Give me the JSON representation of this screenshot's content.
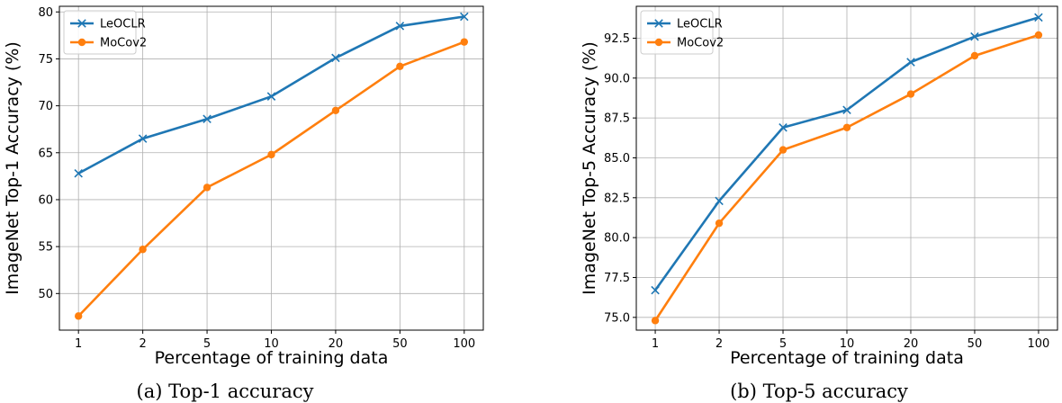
{
  "chart_data": [
    {
      "type": "line",
      "caption": "(a) Top-1 accuracy",
      "xlabel": "Percentage of training data",
      "ylabel": "ImageNet Top-1 Accuracy (%)",
      "categories": [
        "1",
        "2",
        "5",
        "10",
        "20",
        "50",
        "100"
      ],
      "ylim": [
        46.1,
        80.6
      ],
      "yticks": [
        50,
        55,
        60,
        65,
        70,
        75,
        80
      ],
      "ytick_labels": [
        "50",
        "55",
        "60",
        "65",
        "70",
        "75",
        "80"
      ],
      "grid": true,
      "legend_position": "top-left",
      "series": [
        {
          "name": "LeOCLR",
          "color": "#1f77b4",
          "marker": "x",
          "values": [
            62.8,
            66.5,
            68.6,
            71.0,
            75.1,
            78.5,
            79.5
          ]
        },
        {
          "name": "MoCov2",
          "color": "#ff7f0e",
          "marker": "o",
          "values": [
            47.6,
            54.7,
            61.3,
            64.8,
            69.5,
            74.2,
            76.8
          ]
        }
      ]
    },
    {
      "type": "line",
      "caption": "(b) Top-5 accuracy",
      "xlabel": "Percentage of training data",
      "ylabel": "ImageNet Top-5 Accuracy (%)",
      "categories": [
        "1",
        "2",
        "5",
        "10",
        "20",
        "50",
        "100"
      ],
      "ylim": [
        74.2,
        94.5
      ],
      "yticks": [
        75.0,
        77.5,
        80.0,
        82.5,
        85.0,
        87.5,
        90.0,
        92.5
      ],
      "ytick_labels": [
        "75.0",
        "77.5",
        "80.0",
        "82.5",
        "85.0",
        "87.5",
        "90.0",
        "92.5"
      ],
      "grid": true,
      "legend_position": "top-left",
      "series": [
        {
          "name": "LeOCLR",
          "color": "#1f77b4",
          "marker": "x",
          "values": [
            76.7,
            82.3,
            86.9,
            88.0,
            91.0,
            92.6,
            93.8
          ]
        },
        {
          "name": "MoCov2",
          "color": "#ff7f0e",
          "marker": "o",
          "values": [
            74.8,
            80.9,
            85.5,
            86.9,
            89.0,
            91.4,
            92.7
          ]
        }
      ]
    }
  ]
}
